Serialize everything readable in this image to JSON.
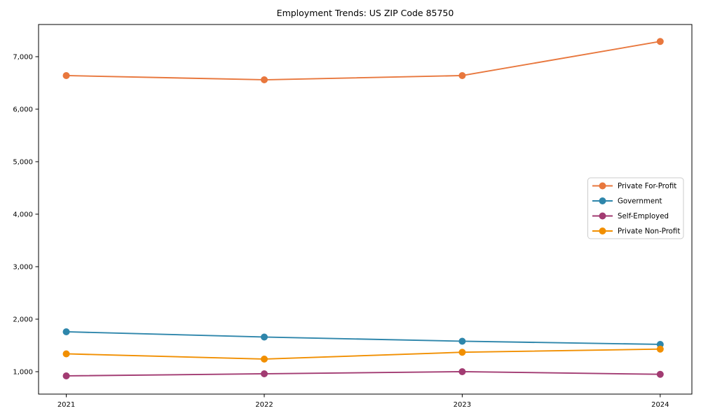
{
  "title": "Employment Trends: US ZIP Code 85750",
  "chart_data": {
    "type": "line",
    "title": "Employment Trends: US ZIP Code 85750",
    "xlabel": "",
    "ylabel": "",
    "x": [
      2021,
      2022,
      2023,
      2024
    ],
    "xtick_labels": [
      "2021",
      "2022",
      "2023",
      "2024"
    ],
    "yticks": [
      1000,
      2000,
      3000,
      4000,
      5000,
      6000,
      7000
    ],
    "ytick_labels": [
      "1,000",
      "2,000",
      "3,000",
      "4,000",
      "5,000",
      "6,000",
      "7,000"
    ],
    "xlim": [
      2020.86,
      2024.16
    ],
    "ylim": [
      573,
      7613
    ],
    "grid": false,
    "legend_position": "center-right",
    "marker": "circle",
    "series": [
      {
        "name": "Private For-Profit",
        "color": "#e8773d",
        "values": [
          6640,
          6560,
          6640,
          7290
        ]
      },
      {
        "name": "Government",
        "color": "#2e86ab",
        "values": [
          1760,
          1660,
          1580,
          1520
        ]
      },
      {
        "name": "Self-Employed",
        "color": "#a23b72",
        "values": [
          920,
          960,
          1000,
          950
        ]
      },
      {
        "name": "Private Non-Profit",
        "color": "#f18f01",
        "values": [
          1340,
          1240,
          1370,
          1430
        ]
      }
    ]
  }
}
